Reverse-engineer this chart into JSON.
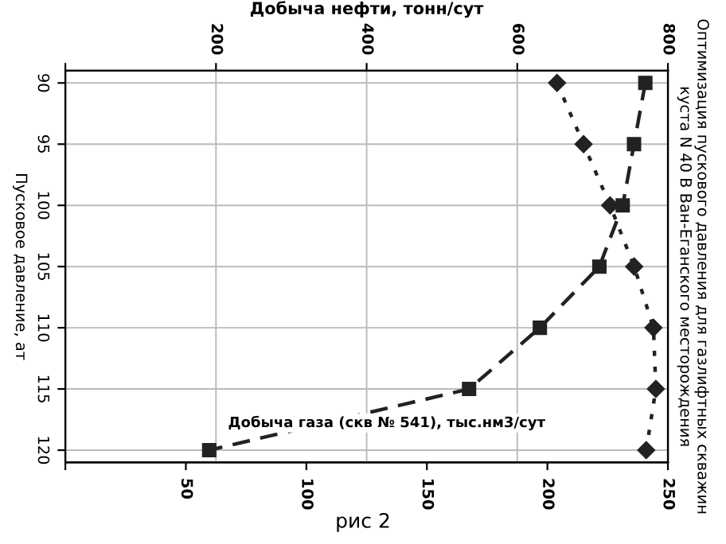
{
  "chart_data": {
    "type": "line",
    "title": "Оптимизация пускового давления для газлифтных скважин куста N 40 В Ван-Еганского месторождения",
    "ylabel": "Пусковое давление, ат",
    "x2label": "Добыча нефти, тонн/сут",
    "annotations": [
      "Добыча газа (скв № 541), тыс.нм3/сут",
      "рис 2"
    ],
    "series": [
      {
        "axis": "x2",
        "color": "#222222",
        "marker": "square",
        "line_style": "dashed",
        "x": [
          770,
          755,
          740,
          709,
          630,
          536,
          191
        ],
        "values": [
          90,
          95,
          100,
          105,
          110,
          115,
          120
        ]
      },
      {
        "color": "#222222",
        "marker": "diamond",
        "line_style": "dotted",
        "x": [
          204,
          215,
          226,
          236,
          244,
          245,
          241
        ],
        "values": [
          90,
          95,
          100,
          105,
          110,
          115,
          120
        ]
      }
    ],
    "xlim": [
      0,
      250
    ],
    "xticks": [
      {
        "value": 0,
        "label": null
      },
      50,
      100,
      150,
      200,
      250
    ],
    "x2lim": [
      0,
      800
    ],
    "x2ticks": [
      {
        "value": 0,
        "label": null
      },
      200,
      400,
      600,
      800
    ],
    "ylim": [
      121,
      89
    ],
    "yticks": [
      90,
      95,
      100,
      105,
      110,
      115,
      120
    ],
    "grid": true,
    "legend": false
  }
}
